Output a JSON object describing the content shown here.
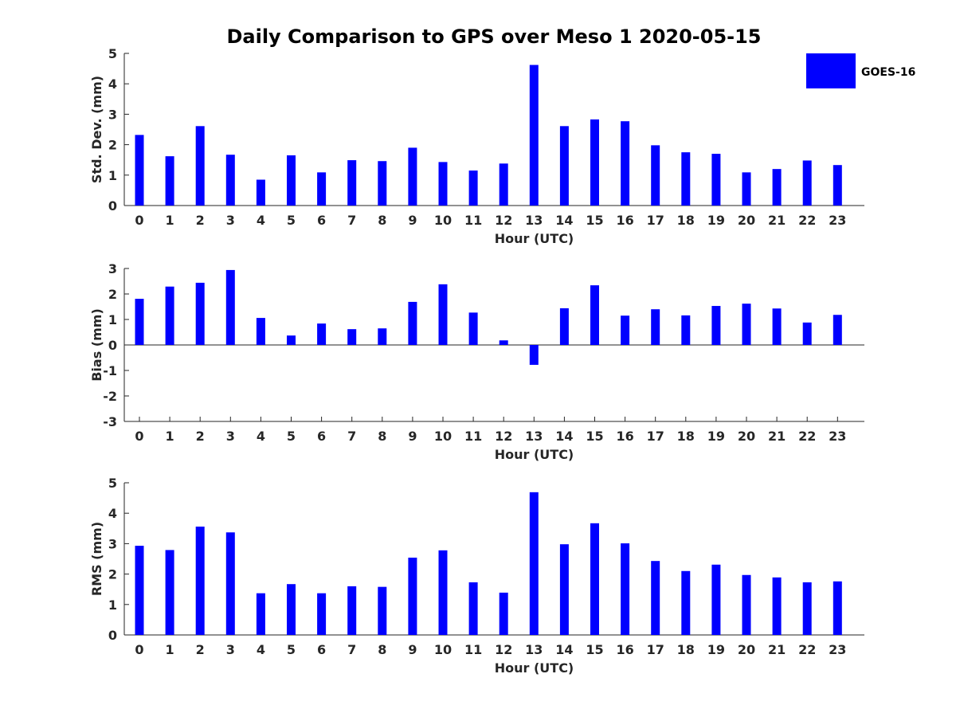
{
  "figure_title": "Daily Comparison to GPS over Meso 1 2020-05-15",
  "colors": {
    "bar": "#0000ff",
    "axis": "#262626",
    "title": "#000000"
  },
  "legend": {
    "label": "GOES-16",
    "placement": "top-right"
  },
  "chart_data": [
    {
      "type": "bar",
      "title": "Daily Comparison to GPS over Meso 1 2020-05-15",
      "xlabel": "Hour (UTC)",
      "ylabel": "Std. Dev. (mm)",
      "ylim": [
        0,
        5
      ],
      "yticks": [
        0,
        1,
        2,
        3,
        4,
        5
      ],
      "categories": [
        "0",
        "1",
        "2",
        "3",
        "4",
        "5",
        "6",
        "7",
        "8",
        "9",
        "10",
        "11",
        "12",
        "13",
        "14",
        "15",
        "16",
        "17",
        "18",
        "19",
        "20",
        "21",
        "22",
        "23"
      ],
      "series": [
        {
          "name": "GOES-16",
          "values": [
            2.32,
            1.62,
            2.61,
            1.67,
            0.85,
            1.65,
            1.09,
            1.49,
            1.46,
            1.9,
            1.43,
            1.15,
            1.38,
            4.62,
            2.61,
            2.83,
            2.77,
            1.98,
            1.75,
            1.7,
            1.09,
            1.2,
            1.48,
            1.33
          ]
        }
      ]
    },
    {
      "type": "bar",
      "title": "",
      "xlabel": "Hour (UTC)",
      "ylabel": "Bias (mm)",
      "ylim": [
        -3,
        3
      ],
      "yticks": [
        -3,
        -2,
        -1,
        0,
        1,
        2,
        3
      ],
      "categories": [
        "0",
        "1",
        "2",
        "3",
        "4",
        "5",
        "6",
        "7",
        "8",
        "9",
        "10",
        "11",
        "12",
        "13",
        "14",
        "15",
        "16",
        "17",
        "18",
        "19",
        "20",
        "21",
        "22",
        "23"
      ],
      "series": [
        {
          "name": "GOES-16",
          "values": [
            1.81,
            2.29,
            2.44,
            2.94,
            1.06,
            0.37,
            0.84,
            0.62,
            0.65,
            1.69,
            2.38,
            1.27,
            0.18,
            -0.78,
            1.44,
            2.34,
            1.15,
            1.4,
            1.16,
            1.53,
            1.62,
            1.43,
            0.88,
            1.18
          ]
        }
      ]
    },
    {
      "type": "bar",
      "title": "",
      "xlabel": "Hour (UTC)",
      "ylabel": "RMS (mm)",
      "ylim": [
        0,
        5
      ],
      "yticks": [
        0,
        1,
        2,
        3,
        4,
        5
      ],
      "categories": [
        "0",
        "1",
        "2",
        "3",
        "4",
        "5",
        "6",
        "7",
        "8",
        "9",
        "10",
        "11",
        "12",
        "13",
        "14",
        "15",
        "16",
        "17",
        "18",
        "19",
        "20",
        "21",
        "22",
        "23"
      ],
      "series": [
        {
          "name": "GOES-16",
          "values": [
            2.93,
            2.79,
            3.56,
            3.37,
            1.37,
            1.67,
            1.37,
            1.6,
            1.58,
            2.54,
            2.78,
            1.73,
            1.39,
            4.69,
            2.98,
            3.67,
            3.01,
            2.43,
            2.1,
            2.31,
            1.97,
            1.89,
            1.73,
            1.76
          ]
        }
      ]
    }
  ]
}
